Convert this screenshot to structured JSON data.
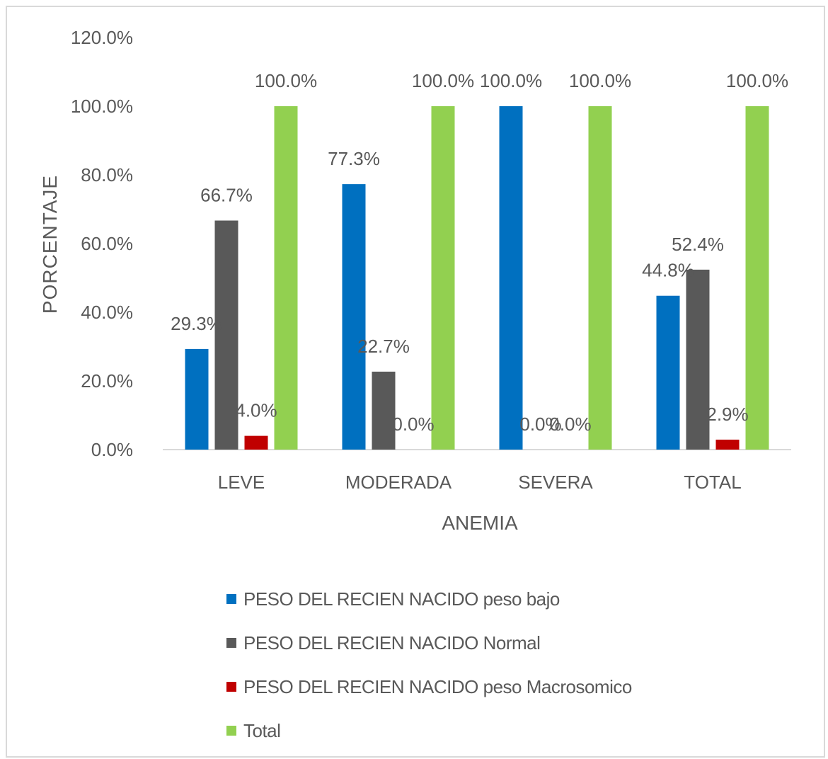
{
  "chart_data": {
    "type": "bar",
    "title": "",
    "xlabel": "ANEMIA",
    "ylabel": "PORCENTAJE",
    "categories": [
      "LEVE",
      "MODERADA",
      "SEVERA",
      "TOTAL"
    ],
    "ylim": [
      0,
      120
    ],
    "yticks": [
      "0.0%",
      "20.0%",
      "40.0%",
      "60.0%",
      "80.0%",
      "100.0%",
      "120.0%"
    ],
    "grid": false,
    "legend_position": "bottom",
    "series": [
      {
        "name": "PESO DEL RECIEN NACIDO peso bajo",
        "color": "#0070c0",
        "values": [
          29.3,
          77.3,
          100.0,
          44.8
        ],
        "labels": [
          "29.3%",
          "77.3%",
          "100.0%",
          "44.8%"
        ]
      },
      {
        "name": "PESO DEL RECIEN NACIDO Normal",
        "color": "#595959",
        "values": [
          66.7,
          22.7,
          0.0,
          52.4
        ],
        "labels": [
          "66.7%",
          "22.7%",
          "0.0%",
          "52.4%"
        ]
      },
      {
        "name": "PESO DEL RECIEN NACIDO peso Macrosomico",
        "color": "#c00000",
        "values": [
          4.0,
          0.0,
          0.0,
          2.9
        ],
        "labels": [
          "4.0%",
          "0.0%",
          "0.0%",
          "2.9%"
        ]
      },
      {
        "name": "Total",
        "color": "#92d050",
        "values": [
          100.0,
          100.0,
          100.0,
          100.0
        ],
        "labels": [
          "100.0%",
          "100.0%",
          "100.0%",
          "100.0%"
        ]
      }
    ]
  }
}
